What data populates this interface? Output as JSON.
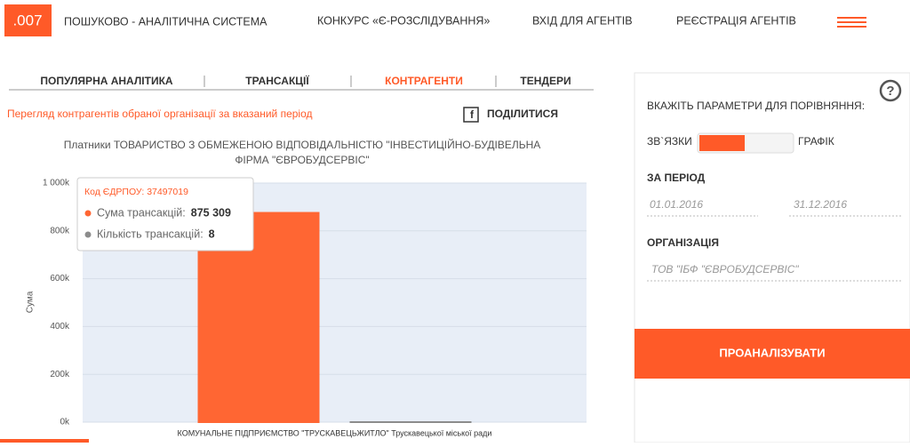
{
  "header": {
    "logo": ".007",
    "system": "ПОШУКОВО - АНАЛІТИЧНА СИСТЕМА",
    "nav": [
      "КОНКУРС «Є-РОЗСЛІДУВАННЯ»",
      "ВХІД ДЛЯ АГЕНТІВ",
      "РЕЄСТРАЦІЯ АГЕНТІВ"
    ]
  },
  "tabs": {
    "items": [
      "ПОПУЛЯРНА АНАЛІТИКА",
      "ТРАНСАКЦІЇ",
      "КОНТРАГЕНТИ",
      "ТЕНДЕРИ"
    ],
    "active": 2
  },
  "intro": "Перегляд контрагентів обраної організації за вказаний період",
  "share": "ПОДІЛИТИСЯ",
  "chart_data": {
    "type": "bar",
    "title": "Платники ТОВАРИСТВО З ОБМЕЖЕНОЮ ВІДПОВІДАЛЬНІСТЮ \"ІНВЕСТИЦІЙНО-БУДІВЕЛЬНА ФІРМА \"ЄВРОБУДСЕРВІС\"",
    "ylabel": "Сума",
    "categories": [
      "КОМУНАЛЬНЕ ПІДПРИЄМСТВО \"ТРУСКАВЕЦЬЖИТЛО\" Трускавецької міської ради"
    ],
    "series": [
      {
        "color": "#ff6633",
        "values": [
          875309
        ],
        "value_labels": [
          "875 309"
        ]
      },
      {
        "color": "#8c8c8c",
        "values": [
          8
        ],
        "value_labels": [
          "8"
        ]
      }
    ],
    "ylim": [
      0,
      1000000
    ],
    "yticks": [
      {
        "value": 0,
        "label": "0k"
      },
      {
        "value": 200000,
        "label": "200k"
      },
      {
        "value": 400000,
        "label": "400k"
      },
      {
        "value": 600000,
        "label": "600k"
      },
      {
        "value": 800000,
        "label": "800k"
      },
      {
        "value": 1000000,
        "label": "1 000k"
      }
    ],
    "tooltip": {
      "header": "Код ЄДРПОУ: 37497019",
      "rows": [
        "Сума трансакцій:",
        "Кількість трансакцій:"
      ]
    }
  },
  "panel": {
    "prompt": "ВКАЖІТЬ ПАРАМЕТРИ ДЛЯ ПОРІВНЯННЯ:",
    "help": "?",
    "toggle_left": "ЗВ`ЯЗКИ",
    "toggle_right": "ГРАФІК",
    "period": "ЗА ПЕРІОД",
    "date_from": "01.01.2016",
    "date_to": "31.12.2016",
    "org_label": "ОРГАНІЗАЦІЯ",
    "org_value": "ТОВ \"ІБФ \"ЄВРОБУДСЕРВІС\"",
    "button": "ПРОАНАЛІЗУВАТИ"
  }
}
